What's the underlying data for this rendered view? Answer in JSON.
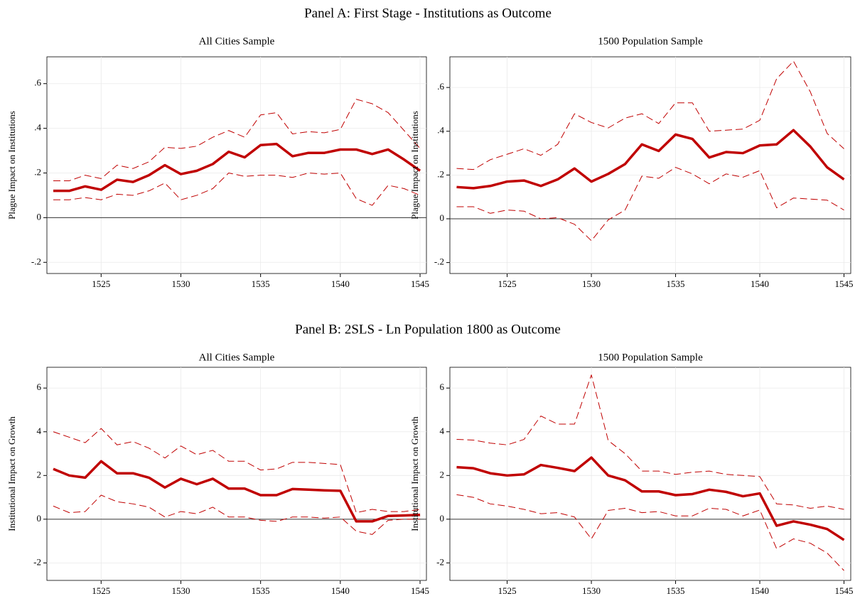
{
  "panel_titles": [
    "Panel A: First Stage - Institutions as Outcome",
    "Panel B: 2SLS - Ln Population 1800 as Outcome"
  ],
  "chart_data": [
    {
      "type": "line",
      "title": "All Cities Sample",
      "ylabel": "Plague Impact on Institutions",
      "x": [
        1522,
        1523,
        1524,
        1525,
        1526,
        1527,
        1528,
        1529,
        1530,
        1531,
        1532,
        1533,
        1534,
        1535,
        1536,
        1537,
        1538,
        1539,
        1540,
        1541,
        1542,
        1543,
        1544,
        1545
      ],
      "xlim": [
        1521.6,
        1545.4
      ],
      "xticks": [
        1525,
        1530,
        1535,
        1540,
        1545
      ],
      "ylim": [
        -0.25,
        0.72
      ],
      "yticks": [
        {
          "value": -0.2,
          "label": "-.2"
        },
        0,
        {
          "value": 0.2,
          "label": ".2"
        },
        {
          "value": 0.4,
          "label": ".4"
        },
        {
          "value": 0.6,
          "label": ".6"
        }
      ],
      "grid": true,
      "hline": 0,
      "series": [
        {
          "color": "#c00000",
          "style": "solid",
          "values": [
            0.12,
            0.12,
            0.14,
            0.125,
            0.17,
            0.16,
            0.19,
            0.235,
            0.195,
            0.21,
            0.24,
            0.295,
            0.27,
            0.325,
            0.33,
            0.275,
            0.29,
            0.29,
            0.305,
            0.305,
            0.285,
            0.305,
            0.26,
            0.21
          ]
        },
        {
          "color": "#c00000",
          "style": "dashed",
          "values": [
            0.165,
            0.165,
            0.19,
            0.175,
            0.235,
            0.22,
            0.25,
            0.315,
            0.31,
            0.32,
            0.36,
            0.39,
            0.36,
            0.46,
            0.47,
            0.375,
            0.385,
            0.38,
            0.395,
            0.53,
            0.51,
            0.47,
            0.39,
            0.31
          ]
        },
        {
          "color": "#c00000",
          "style": "dashed",
          "values": [
            0.08,
            0.08,
            0.09,
            0.08,
            0.105,
            0.1,
            0.12,
            0.155,
            0.08,
            0.1,
            0.13,
            0.2,
            0.185,
            0.19,
            0.19,
            0.18,
            0.2,
            0.195,
            0.2,
            0.085,
            0.055,
            0.145,
            0.13,
            0.1
          ]
        }
      ]
    },
    {
      "type": "line",
      "title": "1500 Population Sample",
      "ylabel": "Plague Impact on Institutions",
      "x": [
        1522,
        1523,
        1524,
        1525,
        1526,
        1527,
        1528,
        1529,
        1530,
        1531,
        1532,
        1533,
        1534,
        1535,
        1536,
        1537,
        1538,
        1539,
        1540,
        1541,
        1542,
        1543,
        1544,
        1545
      ],
      "xlim": [
        1521.6,
        1545.4
      ],
      "xticks": [
        1525,
        1530,
        1535,
        1540,
        1545
      ],
      "ylim": [
        -0.25,
        0.74
      ],
      "yticks": [
        {
          "value": -0.2,
          "label": "-.2"
        },
        0,
        {
          "value": 0.2,
          "label": ".2"
        },
        {
          "value": 0.4,
          "label": ".4"
        },
        {
          "value": 0.6,
          "label": ".6"
        }
      ],
      "grid": true,
      "hline": 0,
      "series": [
        {
          "color": "#c00000",
          "style": "solid",
          "values": [
            0.145,
            0.14,
            0.15,
            0.17,
            0.175,
            0.15,
            0.18,
            0.23,
            0.17,
            0.205,
            0.25,
            0.34,
            0.31,
            0.385,
            0.365,
            0.28,
            0.305,
            0.3,
            0.335,
            0.34,
            0.405,
            0.33,
            0.235,
            0.18
          ]
        },
        {
          "color": "#c00000",
          "style": "dashed",
          "values": [
            0.23,
            0.225,
            0.27,
            0.295,
            0.32,
            0.29,
            0.34,
            0.48,
            0.44,
            0.415,
            0.46,
            0.48,
            0.435,
            0.53,
            0.53,
            0.4,
            0.405,
            0.41,
            0.45,
            0.64,
            0.72,
            0.58,
            0.39,
            0.32
          ]
        },
        {
          "color": "#c00000",
          "style": "dashed",
          "values": [
            0.055,
            0.055,
            0.025,
            0.04,
            0.035,
            0.0,
            0.005,
            -0.025,
            -0.1,
            -0.005,
            0.04,
            0.195,
            0.185,
            0.235,
            0.205,
            0.16,
            0.205,
            0.19,
            0.22,
            0.05,
            0.095,
            0.09,
            0.085,
            0.04
          ]
        }
      ]
    },
    {
      "type": "line",
      "title": "All Cities Sample",
      "ylabel": "Institutional Impact on Growth",
      "x": [
        1522,
        1523,
        1524,
        1525,
        1526,
        1527,
        1528,
        1529,
        1530,
        1531,
        1532,
        1533,
        1534,
        1535,
        1536,
        1537,
        1538,
        1539,
        1540,
        1541,
        1542,
        1543,
        1544,
        1545
      ],
      "xlim": [
        1521.6,
        1545.4
      ],
      "xticks": [
        1525,
        1530,
        1535,
        1540,
        1545
      ],
      "ylim": [
        -2.8,
        6.95
      ],
      "yticks": [
        -2,
        0,
        2,
        4,
        6
      ],
      "grid": true,
      "hline": 0,
      "series": [
        {
          "color": "#c00000",
          "style": "solid",
          "values": [
            2.3,
            2.0,
            1.9,
            2.65,
            2.1,
            2.1,
            1.9,
            1.45,
            1.85,
            1.6,
            1.85,
            1.4,
            1.4,
            1.1,
            1.1,
            1.38,
            1.35,
            1.32,
            1.3,
            -0.1,
            -0.1,
            0.15,
            0.17,
            0.2
          ]
        },
        {
          "color": "#c00000",
          "style": "dashed",
          "values": [
            4.0,
            3.75,
            3.5,
            4.15,
            3.4,
            3.55,
            3.25,
            2.8,
            3.35,
            2.95,
            3.15,
            2.65,
            2.65,
            2.25,
            2.3,
            2.6,
            2.6,
            2.55,
            2.5,
            0.3,
            0.45,
            0.35,
            0.35,
            0.45
          ]
        },
        {
          "color": "#c00000",
          "style": "dashed",
          "values": [
            0.6,
            0.3,
            0.35,
            1.1,
            0.8,
            0.7,
            0.55,
            0.1,
            0.35,
            0.25,
            0.55,
            0.1,
            0.1,
            -0.05,
            -0.1,
            0.1,
            0.1,
            0.05,
            0.1,
            -0.55,
            -0.7,
            -0.05,
            0.0,
            0.0
          ]
        }
      ]
    },
    {
      "type": "line",
      "title": "1500 Population Sample",
      "ylabel": "Institutional Impact on Growth",
      "x": [
        1522,
        1523,
        1524,
        1525,
        1526,
        1527,
        1528,
        1529,
        1530,
        1531,
        1532,
        1533,
        1534,
        1535,
        1536,
        1537,
        1538,
        1539,
        1540,
        1541,
        1542,
        1543,
        1544,
        1545
      ],
      "xlim": [
        1521.6,
        1545.4
      ],
      "xticks": [
        1525,
        1530,
        1535,
        1540,
        1545
      ],
      "ylim": [
        -2.8,
        6.95
      ],
      "yticks": [
        -2,
        0,
        2,
        4,
        6
      ],
      "grid": true,
      "hline": 0,
      "series": [
        {
          "color": "#c00000",
          "style": "solid",
          "values": [
            2.38,
            2.33,
            2.1,
            2.0,
            2.05,
            2.48,
            2.35,
            2.2,
            2.82,
            2.0,
            1.78,
            1.27,
            1.27,
            1.1,
            1.15,
            1.35,
            1.25,
            1.05,
            1.18,
            -0.3,
            -0.1,
            -0.25,
            -0.45,
            -0.95
          ]
        },
        {
          "color": "#c00000",
          "style": "dashed",
          "values": [
            3.65,
            3.62,
            3.48,
            3.4,
            3.65,
            4.72,
            4.35,
            4.35,
            6.6,
            3.6,
            3.0,
            2.2,
            2.2,
            2.05,
            2.15,
            2.2,
            2.05,
            2.0,
            1.95,
            0.7,
            0.65,
            0.5,
            0.6,
            0.45
          ]
        },
        {
          "color": "#c00000",
          "style": "dashed",
          "values": [
            1.12,
            1.0,
            0.7,
            0.6,
            0.45,
            0.25,
            0.3,
            0.1,
            -0.9,
            0.4,
            0.5,
            0.3,
            0.35,
            0.15,
            0.15,
            0.5,
            0.45,
            0.15,
            0.42,
            -1.35,
            -0.9,
            -1.1,
            -1.55,
            -2.35
          ]
        }
      ]
    }
  ]
}
